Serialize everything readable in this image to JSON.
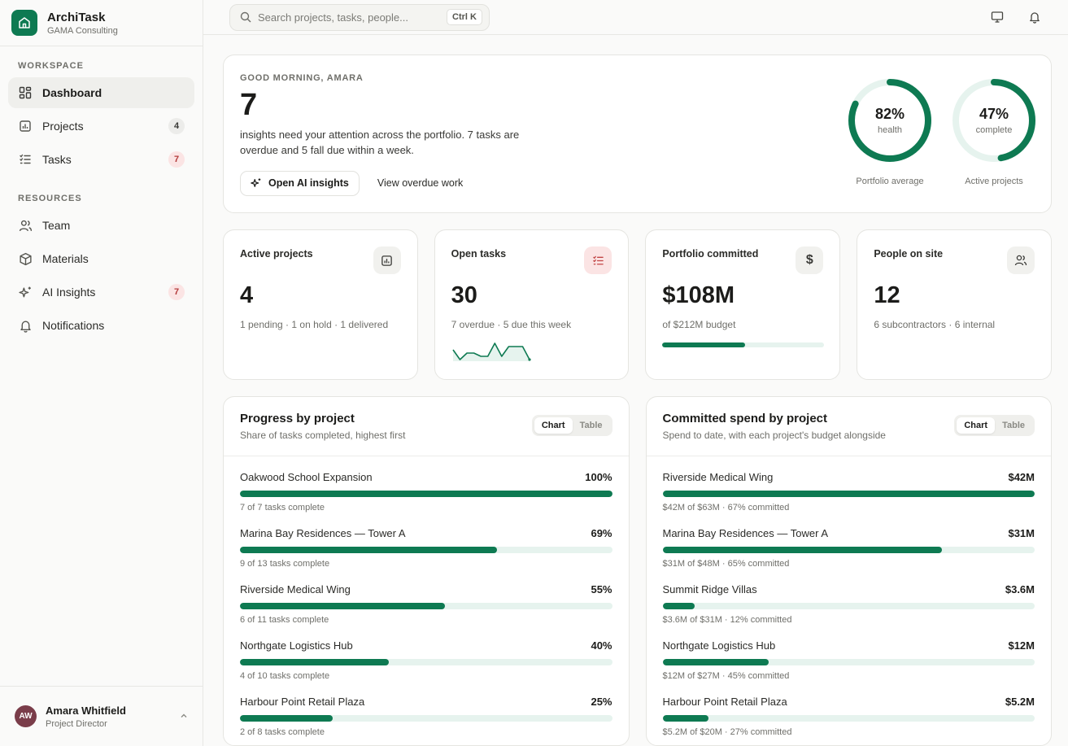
{
  "brand": {
    "name": "ArchiTask",
    "company": "GAMA Consulting"
  },
  "search": {
    "placeholder": "Search projects, tasks, people...",
    "shortcut": "Ctrl K"
  },
  "sidebar": {
    "workspace_title": "WORKSPACE",
    "workspace_items": [
      {
        "label": "Dashboard",
        "icon": "grid-icon",
        "active": true
      },
      {
        "label": "Projects",
        "icon": "chart-doc-icon",
        "badge": "4",
        "badge_style": "gray"
      },
      {
        "label": "Tasks",
        "icon": "checklist-icon",
        "badge": "7",
        "badge_style": "red"
      }
    ],
    "resources_title": "RESOURCES",
    "resource_items": [
      {
        "label": "Team",
        "icon": "users-icon"
      },
      {
        "label": "Materials",
        "icon": "box-icon"
      },
      {
        "label": "AI Insights",
        "icon": "sparkle-icon",
        "badge": "7",
        "badge_style": "red"
      },
      {
        "label": "Notifications",
        "icon": "bell-icon"
      }
    ]
  },
  "user": {
    "initials": "AW",
    "name": "Amara Whitfield",
    "role": "Project Director"
  },
  "hero": {
    "greeting": "GOOD MORNING, AMARA",
    "count": "7",
    "description": "insights need your attention across the portfolio. 7 tasks are overdue and 5 fall due within a week.",
    "primary_action": "Open AI insights",
    "secondary_action": "View overdue work",
    "rings": [
      {
        "value": "82%",
        "label": "health",
        "caption": "Portfolio average",
        "fraction": 0.82
      },
      {
        "value": "47%",
        "label": "complete",
        "caption": "Active projects",
        "fraction": 0.47
      }
    ]
  },
  "stats": [
    {
      "title": "Active projects",
      "value": "4",
      "sub": "1 pending · 1 on hold · 1 delivered",
      "icon": "chart-doc-icon"
    },
    {
      "title": "Open tasks",
      "value": "30",
      "sub": "7 overdue · 5 due this week",
      "icon": "checklist-icon",
      "sparkline": [
        4,
        1,
        3,
        3,
        2,
        2,
        6,
        2,
        5,
        5,
        5,
        1
      ]
    },
    {
      "title": "Portfolio committed",
      "value": "$108M",
      "sub": "of $212M budget",
      "icon": "dollar-icon",
      "progress": 0.51
    },
    {
      "title": "People on site",
      "value": "12",
      "sub": "6 subcontractors · 6 internal",
      "icon": "users-icon"
    }
  ],
  "progress_panel": {
    "title": "Progress by project",
    "subtitle": "Share of tasks completed, highest first",
    "toggle": [
      "Chart",
      "Table"
    ],
    "rows": [
      {
        "name": "Oakwood School Expansion",
        "value": "100%",
        "fraction": 1.0,
        "sub": "7 of 7 tasks complete"
      },
      {
        "name": "Marina Bay Residences — Tower A",
        "value": "69%",
        "fraction": 0.69,
        "sub": "9 of 13 tasks complete"
      },
      {
        "name": "Riverside Medical Wing",
        "value": "55%",
        "fraction": 0.55,
        "sub": "6 of 11 tasks complete"
      },
      {
        "name": "Northgate Logistics Hub",
        "value": "40%",
        "fraction": 0.4,
        "sub": "4 of 10 tasks complete"
      },
      {
        "name": "Harbour Point Retail Plaza",
        "value": "25%",
        "fraction": 0.25,
        "sub": "2 of 8 tasks complete"
      }
    ]
  },
  "spend_panel": {
    "title": "Committed spend by project",
    "subtitle": "Spend to date, with each project's budget alongside",
    "toggle": [
      "Chart",
      "Table"
    ],
    "rows": [
      {
        "name": "Riverside Medical Wing",
        "value": "$42M",
        "fraction": 1.0,
        "sub": "$42M of $63M · 67% committed"
      },
      {
        "name": "Marina Bay Residences — Tower A",
        "value": "$31M",
        "fraction": 0.75,
        "sub": "$31M of $48M · 65% committed"
      },
      {
        "name": "Summit Ridge Villas",
        "value": "$3.6M",
        "fraction": 0.087,
        "sub": "$3.6M of $31M · 12% committed"
      },
      {
        "name": "Northgate Logistics Hub",
        "value": "$12M",
        "fraction": 0.286,
        "sub": "$12M of $27M · 45% committed"
      },
      {
        "name": "Harbour Point Retail Plaza",
        "value": "$5.2M",
        "fraction": 0.124,
        "sub": "$5.2M of $20M · 27% committed"
      }
    ]
  },
  "colors": {
    "accent": "#0e7a52",
    "accent_light": "#e6f3ee",
    "danger_bg": "#fbe4e4",
    "danger": "#b33b3b"
  }
}
